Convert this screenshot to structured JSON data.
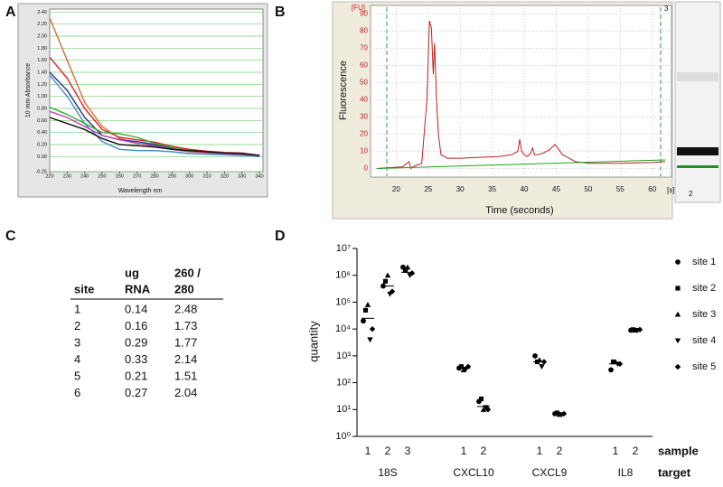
{
  "panels": [
    "A",
    "B",
    "C",
    "D"
  ],
  "chart_data": [
    {
      "type": "line",
      "xlabel": "Wavelength nm",
      "ylabel": "10 mm Absorbance",
      "x": [
        220,
        230,
        240,
        250,
        260,
        270,
        280,
        290,
        300,
        310,
        320,
        330,
        340
      ],
      "xlim": [
        220,
        342
      ],
      "ylim": [
        -0.25,
        2.45
      ],
      "grid": true,
      "xticks": [
        220,
        230,
        240,
        250,
        260,
        270,
        280,
        290,
        300,
        310,
        320,
        330,
        340
      ],
      "yticks": [
        -0.25,
        {
          "value": 0,
          "label": "0.00"
        },
        {
          "value": 0.2,
          "label": "0.20"
        },
        {
          "value": 0.4,
          "label": "0.40"
        },
        {
          "value": 0.6,
          "label": "0.60"
        },
        {
          "value": 0.8,
          "label": "0.80"
        },
        {
          "value": 1,
          "label": "1.00"
        },
        {
          "value": 1.2,
          "label": "1.20"
        },
        {
          "value": 1.4,
          "label": "1.40"
        },
        {
          "value": 1.6,
          "label": "1.60"
        },
        {
          "value": 1.8,
          "label": "1.80"
        },
        {
          "value": 2,
          "label": "2.00"
        },
        {
          "value": 2.2,
          "label": "2.20"
        },
        {
          "value": 2.4,
          "label": "2.40"
        }
      ],
      "series": [
        {
          "color": "#d07030",
          "values": [
            2.3,
            1.6,
            0.9,
            0.5,
            0.3,
            0.22,
            0.17,
            0.12,
            0.08,
            0.06,
            0.04,
            0.03,
            0.01
          ]
        },
        {
          "color": "#e02020",
          "values": [
            1.65,
            1.3,
            0.8,
            0.45,
            0.32,
            0.28,
            0.24,
            0.17,
            0.12,
            0.09,
            0.07,
            0.06,
            0.02
          ]
        },
        {
          "color": "#203080",
          "values": [
            1.4,
            1.1,
            0.65,
            0.35,
            0.28,
            0.25,
            0.2,
            0.14,
            0.1,
            0.08,
            0.06,
            0.05,
            0.01
          ]
        },
        {
          "color": "#4a8ac8",
          "values": [
            1.35,
            1.0,
            0.55,
            0.25,
            0.12,
            0.1,
            0.1,
            0.08,
            0.05,
            0.04,
            0.03,
            0.02,
            0.0
          ]
        },
        {
          "color": "#30b030",
          "values": [
            0.82,
            0.7,
            0.55,
            0.4,
            0.38,
            0.32,
            0.22,
            0.15,
            0.1,
            0.08,
            0.06,
            0.05,
            0.02
          ]
        },
        {
          "color": "#c040c0",
          "values": [
            0.75,
            0.65,
            0.5,
            0.35,
            0.28,
            0.22,
            0.18,
            0.12,
            0.09,
            0.07,
            0.05,
            0.04,
            0.02
          ]
        },
        {
          "color": "#111111",
          "values": [
            0.65,
            0.55,
            0.45,
            0.3,
            0.2,
            0.18,
            0.16,
            0.12,
            0.1,
            0.08,
            0.06,
            0.05,
            0.02
          ]
        }
      ]
    },
    {
      "type": "line",
      "xlabel": "Time (seconds)",
      "ylabel": "Fluorescence",
      "yunit": "[FU]",
      "xunit": "[s]",
      "marker_label": "3",
      "lane_label": "2",
      "xlim": [
        16,
        63
      ],
      "ylim": [
        -5,
        95
      ],
      "grid": true,
      "xticks": [
        20,
        25,
        30,
        35,
        40,
        45,
        50,
        55,
        60
      ],
      "yticks": [
        0,
        10,
        20,
        30,
        40,
        50,
        60,
        70,
        80,
        90
      ],
      "series": [
        {
          "color": "#c02020",
          "x": [
            17,
            21,
            22,
            22.3,
            22.6,
            24,
            24.8,
            25.2,
            25.5,
            25.8,
            26,
            26.3,
            26.6,
            27,
            28,
            30,
            33,
            36,
            38,
            39,
            39.3,
            39.6,
            40,
            40.5,
            41,
            41.3,
            41.6,
            42,
            43,
            44,
            44.8,
            45.2,
            46,
            47,
            48,
            50,
            55,
            60,
            62
          ],
          "values": [
            0,
            1,
            4,
            0,
            1,
            3,
            40,
            86,
            82,
            55,
            73,
            40,
            20,
            8,
            6,
            6,
            6.5,
            7,
            8,
            10,
            17,
            10,
            8,
            7,
            9,
            12,
            8,
            8,
            9,
            11,
            14,
            12,
            8,
            6,
            4,
            3,
            3,
            3.5,
            4
          ]
        },
        {
          "color": "#20a020",
          "x": [
            17,
            62
          ],
          "values": [
            0,
            5
          ]
        }
      ]
    },
    {
      "type": "scatter",
      "ylabel": "quantity",
      "log_y": true,
      "xrow_label": "sample",
      "grouprow_label": "target",
      "ylim": [
        1,
        10000000
      ],
      "yticks": [
        {
          "value": 1,
          "label": "10⁰"
        },
        {
          "value": 10,
          "label": "10¹"
        },
        {
          "value": 100,
          "label": "10²"
        },
        {
          "value": 1000,
          "label": "10³"
        },
        {
          "value": 10000,
          "label": "10⁴"
        },
        {
          "value": 100000,
          "label": "10⁵"
        },
        {
          "value": 1000000,
          "label": "10⁶"
        },
        {
          "value": 10000000,
          "label": "10⁷"
        }
      ],
      "groups": [
        {
          "target": "18S",
          "samples": [
            "1",
            "2",
            "3"
          ]
        },
        {
          "target": "CXCL10",
          "samples": [
            "1",
            "2"
          ]
        },
        {
          "target": "CXCL9",
          "samples": [
            "1",
            "2"
          ]
        },
        {
          "target": "IL8",
          "samples": [
            "1",
            "2"
          ]
        }
      ],
      "medians": [
        25000,
        400000,
        1300000,
        350,
        13,
        600,
        7,
        500,
        9000
      ],
      "series": [
        {
          "name": "site 1",
          "marker": "circle",
          "color": "#000000",
          "values": [
            20000,
            400000,
            2000000,
            350,
            20,
            1000,
            7,
            300,
            9000
          ]
        },
        {
          "name": "site 2",
          "marker": "square",
          "color": "#000000",
          "values": [
            50000,
            600000,
            1500000,
            400,
            25,
            600,
            7.5,
            600,
            9500
          ]
        },
        {
          "name": "site 3",
          "marker": "triangle-up",
          "color": "#000000",
          "values": [
            80000,
            1000000,
            2000000,
            300,
            10,
            700,
            6.5,
            600,
            9000
          ]
        },
        {
          "name": "site 4",
          "marker": "triangle-down",
          "color": "#000000",
          "values": [
            4000,
            200000,
            1000000,
            320,
            12,
            400,
            6.5,
            500,
            9000
          ]
        },
        {
          "name": "site 5",
          "marker": "diamond",
          "color": "#000000",
          "values": [
            10000,
            250000,
            1200000,
            400,
            10,
            600,
            7,
            500,
            9500
          ]
        }
      ]
    }
  ],
  "table": {
    "header": [
      [
        "site"
      ],
      [
        "ug",
        "RNA"
      ],
      [
        "260 /",
        "280"
      ]
    ],
    "rows": [
      [
        1,
        0.14,
        2.48
      ],
      [
        2,
        0.16,
        1.73
      ],
      [
        3,
        0.29,
        1.77
      ],
      [
        4,
        0.33,
        2.14
      ],
      [
        5,
        0.21,
        1.51
      ],
      [
        6,
        0.27,
        2.04
      ]
    ]
  }
}
